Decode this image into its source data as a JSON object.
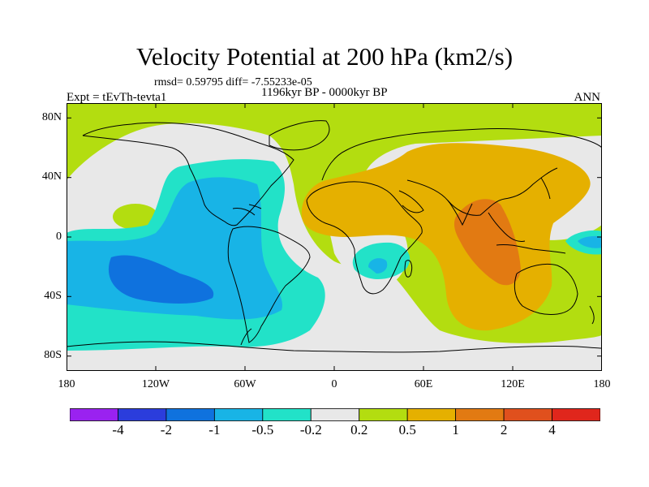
{
  "title": "Velocity Potential at 200 hPa (km2/s)",
  "subtitle": "rmsd= 0.59795 diff= -7.55233e-05",
  "experiment": "Expt = tEvTh-tevta1",
  "period": "1196kyr BP - 0000kyr BP",
  "season": "ANN",
  "map": {
    "y_ticks": [
      "80N",
      "40N",
      "0",
      "40S",
      "80S"
    ],
    "x_ticks": [
      "180",
      "120W",
      "60W",
      "0",
      "60E",
      "120E",
      "180"
    ]
  },
  "colorbar": {
    "labels": [
      "-4",
      "-2",
      "-1",
      "-0.5",
      "-0.2",
      "0.2",
      "0.5",
      "1",
      "2",
      "4"
    ],
    "colors": [
      "#9a22f0",
      "#2b3ddc",
      "#0f72de",
      "#18b4e6",
      "#22e2c8",
      "#e8e8e8",
      "#b3dd10",
      "#e5b000",
      "#e27a12",
      "#e0501d",
      "#e0261c"
    ]
  }
}
